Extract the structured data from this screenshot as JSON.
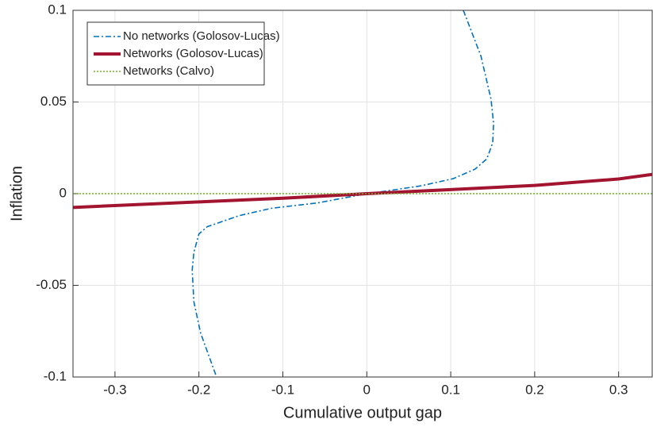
{
  "chart_data": {
    "type": "line",
    "xlabel": "Cumulative output gap",
    "ylabel": "Inflation",
    "xlim": [
      -0.35,
      0.34
    ],
    "ylim": [
      -0.1,
      0.1
    ],
    "xticks": [
      -0.3,
      -0.2,
      -0.1,
      0,
      0.1,
      0.2,
      0.3
    ],
    "yticks": [
      -0.1,
      -0.05,
      0,
      0.05,
      0.1
    ],
    "grid": true,
    "legend_position": "northwest",
    "series": [
      {
        "name": "No networks (Golosov-Lucas)",
        "color": "#0072bd",
        "dash": "dashdot",
        "width": 1.6,
        "x": [
          0.115,
          0.136,
          0.148,
          0.151,
          0.15,
          0.143,
          0.129,
          0.103,
          0.065,
          0.027,
          0,
          -0.058,
          -0.114,
          -0.152,
          -0.19,
          -0.2,
          -0.206,
          -0.208,
          -0.206,
          -0.198,
          -0.179
        ],
        "values": [
          0.1,
          0.075,
          0.0515,
          0.0385,
          0.0277,
          0.019,
          0.0134,
          0.0082,
          0.0043,
          0.0017,
          0,
          -0.005,
          -0.008,
          -0.012,
          -0.018,
          -0.022,
          -0.032,
          -0.0416,
          -0.059,
          -0.076,
          -0.1
        ]
      },
      {
        "name": "Networks (Golosov-Lucas)",
        "color": "#a2142f",
        "dash": "solid",
        "width": 4,
        "x": [
          -0.35,
          -0.2,
          -0.1,
          0,
          0.1,
          0.2,
          0.3,
          0.34
        ],
        "values": [
          -0.0075,
          -0.0045,
          -0.0025,
          0,
          0.0022,
          0.0045,
          0.008,
          0.0105
        ]
      },
      {
        "name": "Networks (Calvo)",
        "color": "#77ac30",
        "dash": "dotted",
        "width": 1.6,
        "x": [
          -0.35,
          0.34
        ],
        "values": [
          0,
          0
        ]
      }
    ]
  }
}
